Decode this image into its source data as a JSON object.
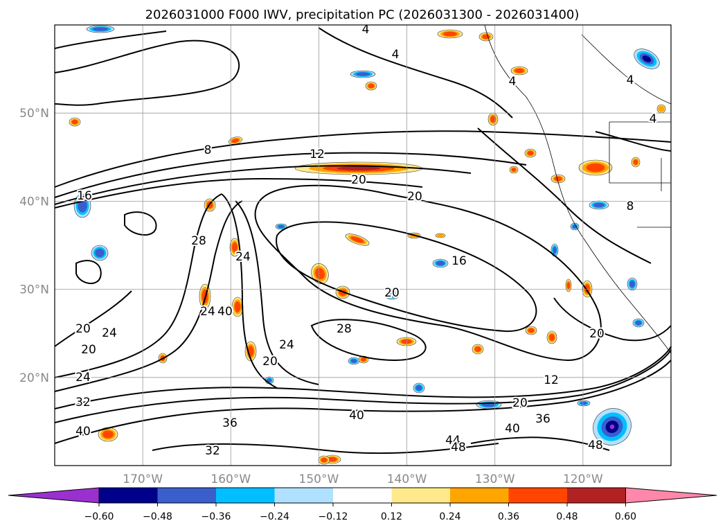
{
  "chart_data": {
    "type": "contour-map",
    "title": "2026031000 F000 IWV, precipitation PC (2026031300 - 2026031400)",
    "grid": true,
    "lon_ticks": [
      {
        "value": -170,
        "label": "170°W"
      },
      {
        "value": -160,
        "label": "160°W"
      },
      {
        "value": -150,
        "label": "150°W"
      },
      {
        "value": -140,
        "label": "140°W"
      },
      {
        "value": -130,
        "label": "130°W"
      },
      {
        "value": -120,
        "label": "120°W"
      }
    ],
    "lat_ticks": [
      {
        "value": 50,
        "label": "50°N"
      },
      {
        "value": 40,
        "label": "40°N"
      },
      {
        "value": 30,
        "label": "30°N"
      },
      {
        "value": 20,
        "label": "20°N"
      }
    ],
    "iwv_contour_labels": [
      "4",
      "8",
      "12",
      "16",
      "20",
      "24",
      "28",
      "32",
      "36",
      "40",
      "44",
      "48"
    ],
    "colorbar": {
      "orientation": "horizontal",
      "extend": "both",
      "tick_labels": [
        "−0.60",
        "−0.48",
        "−0.36",
        "−0.24",
        "−0.12",
        "0.12",
        "0.24",
        "0.36",
        "0.48",
        "0.60"
      ],
      "colors": [
        "#9b30d0",
        "#00008b",
        "#3a5fcd",
        "#00bfff",
        "#b0e2ff",
        "#ffffff",
        "#ffe98a",
        "#ffa500",
        "#ff4500",
        "#b22222",
        "#ff88aa"
      ]
    }
  }
}
